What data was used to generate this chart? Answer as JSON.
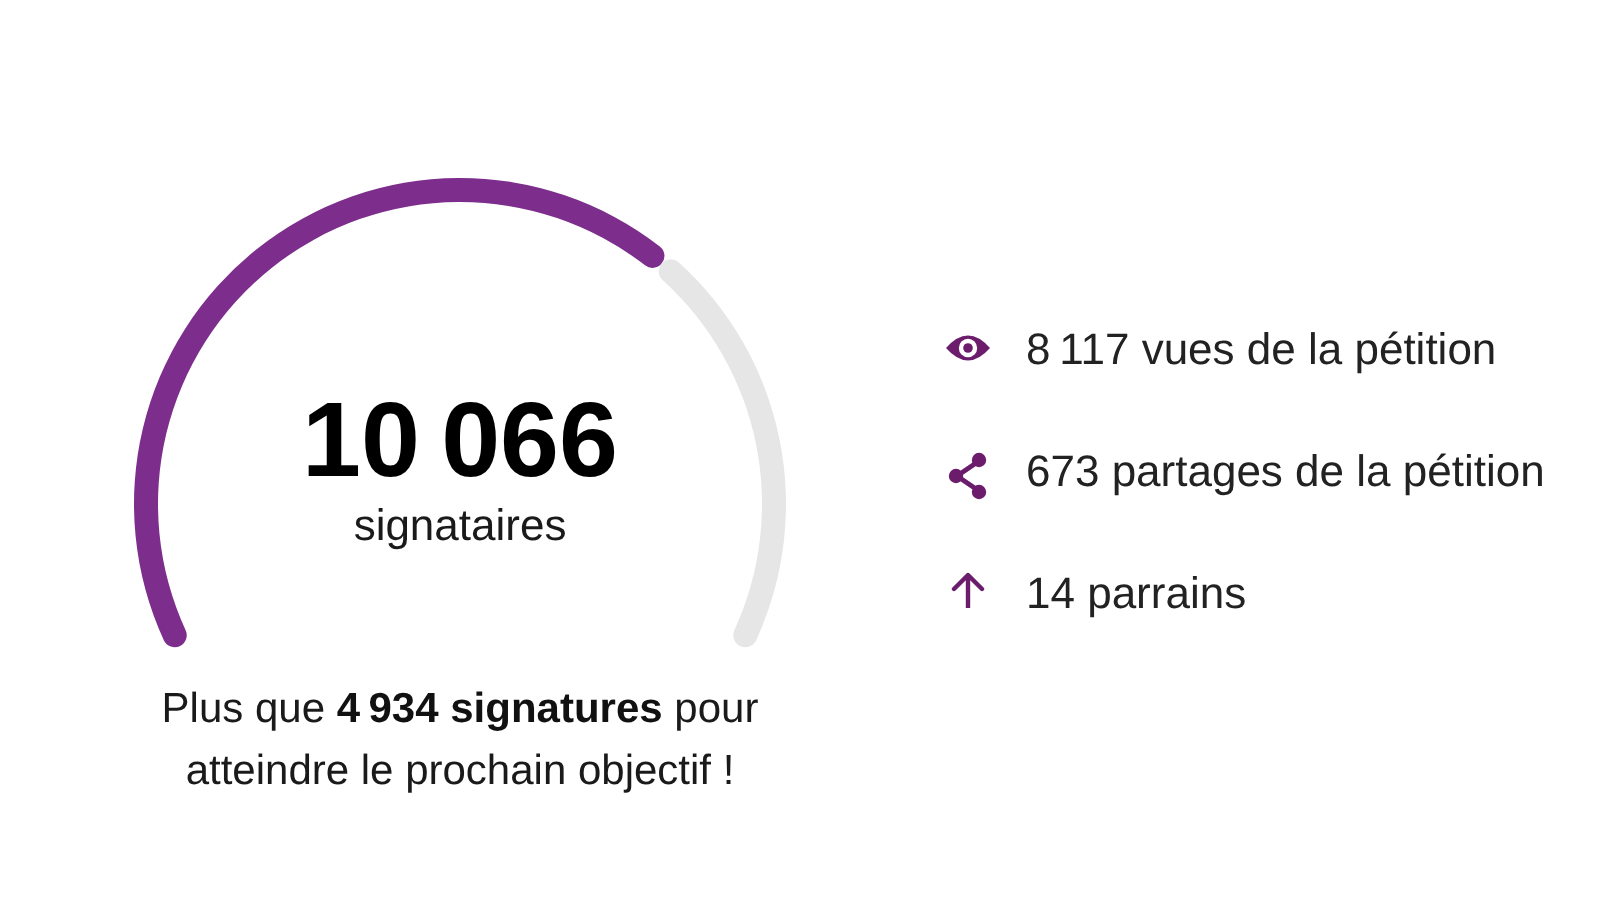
{
  "chart_data": [
    {
      "type": "donut",
      "categories": [
        "signataires",
        null
      ],
      "values": [
        10066,
        4934
      ],
      "colors": [
        "#7d2d8c",
        "#e6e6e6"
      ],
      "value_labels": [
        "10 066",
        null
      ],
      "annotations": [
        "Plus que",
        "4 934 signatures",
        "pour",
        "atteindre le prochain objectif !"
      ]
    },
    {
      "type": "other",
      "annotations": [
        "8 117 vues de la pétition",
        "673 partages de la pétition",
        "14 parrains"
      ]
    }
  ]
}
